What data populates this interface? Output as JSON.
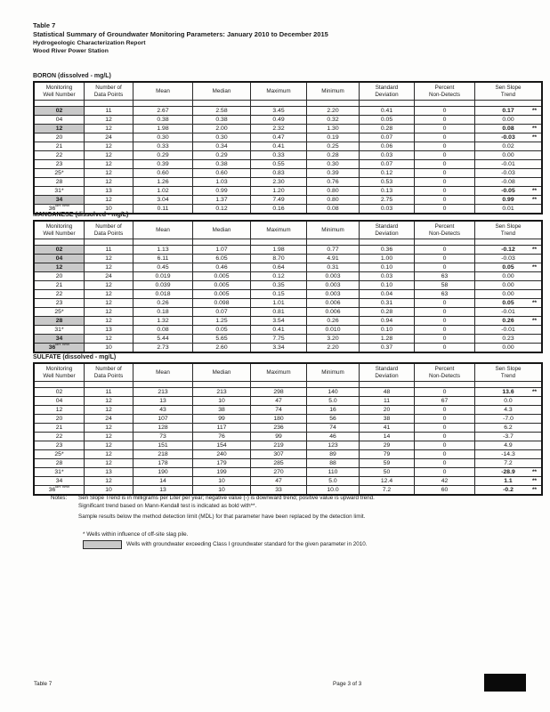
{
  "header": {
    "table_number": "Table 7",
    "title": "Statistical Summary of Groundwater Monitoring Parameters: January 2010 to December 2015",
    "subtitle1": "Hydrogeologic Characterization Report",
    "subtitle2": "Wood River Power Station"
  },
  "columns": [
    [
      "Monitoring",
      "Well Number"
    ],
    [
      "Number of",
      "Data Points"
    ],
    [
      "Mean"
    ],
    [
      "Median"
    ],
    [
      "Maximum"
    ],
    [
      "Minimum"
    ],
    [
      "Standard",
      "Deviation"
    ],
    [
      "Percent",
      "Non-Detects"
    ],
    [
      "Sen Slope",
      "Trend"
    ]
  ],
  "highlight_color": "#c9c9c9",
  "tables": [
    {
      "label": "BORON (dissolved - mg/L)",
      "rows": [
        {
          "well": "02",
          "sup": "",
          "hl": true,
          "vals": [
            "11",
            "2.67",
            "2.58",
            "3.45",
            "2.20",
            "0.41",
            "0"
          ],
          "sen": "0.17",
          "stars": "**",
          "bold": true
        },
        {
          "well": "04",
          "sup": "",
          "hl": false,
          "vals": [
            "12",
            "0.38",
            "0.38",
            "0.49",
            "0.32",
            "0.05",
            "0"
          ],
          "sen": "0.00",
          "stars": "",
          "bold": false
        },
        {
          "well": "12",
          "sup": "",
          "hl": true,
          "vals": [
            "12",
            "1.98",
            "2.00",
            "2.32",
            "1.30",
            "0.28",
            "0"
          ],
          "sen": "0.08",
          "stars": "**",
          "bold": true
        },
        {
          "well": "20",
          "sup": "",
          "hl": false,
          "vals": [
            "24",
            "0.30",
            "0.30",
            "0.47",
            "0.19",
            "0.07",
            "0"
          ],
          "sen": "-0.03",
          "stars": "**",
          "bold": true
        },
        {
          "well": "21",
          "sup": "",
          "hl": false,
          "vals": [
            "12",
            "0.33",
            "0.34",
            "0.41",
            "0.25",
            "0.06",
            "0"
          ],
          "sen": "0.02",
          "stars": "",
          "bold": false
        },
        {
          "well": "22",
          "sup": "",
          "hl": false,
          "vals": [
            "12",
            "0.29",
            "0.29",
            "0.33",
            "0.28",
            "0.03",
            "0"
          ],
          "sen": "0.00",
          "stars": "",
          "bold": false
        },
        {
          "well": "23",
          "sup": "",
          "hl": false,
          "vals": [
            "12",
            "0.39",
            "0.38",
            "0.55",
            "0.30",
            "0.07",
            "0"
          ],
          "sen": "-0.01",
          "stars": "",
          "bold": false
        },
        {
          "well": "25*",
          "sup": "",
          "hl": false,
          "vals": [
            "12",
            "0.60",
            "0.60",
            "0.83",
            "0.39",
            "0.12",
            "0"
          ],
          "sen": "-0.03",
          "stars": "",
          "bold": false
        },
        {
          "well": "28",
          "sup": "",
          "hl": false,
          "vals": [
            "12",
            "1.26",
            "1.03",
            "2.30",
            "0.76",
            "0.53",
            "0"
          ],
          "sen": "-0.08",
          "stars": "",
          "bold": false
        },
        {
          "well": "31*",
          "sup": "",
          "hl": false,
          "vals": [
            "13",
            "1.02",
            "0.99",
            "1.20",
            "0.80",
            "0.13",
            "0"
          ],
          "sen": "-0.05",
          "stars": "**",
          "bold": true
        },
        {
          "well": "34",
          "sup": "",
          "hl": true,
          "vals": [
            "12",
            "3.04",
            "1.37",
            "7.49",
            "0.80",
            "2.75",
            "0"
          ],
          "sen": "0.99",
          "stars": "**",
          "bold": true
        },
        {
          "well": "36",
          "sup": "BR WW",
          "hl": false,
          "vals": [
            "10",
            "0.11",
            "0.12",
            "0.16",
            "0.08",
            "0.03",
            "0"
          ],
          "sen": "0.01",
          "stars": "",
          "bold": false
        }
      ]
    },
    {
      "label": "MANGANESE (dissolved - mg/L)",
      "rows": [
        {
          "well": "02",
          "sup": "",
          "hl": true,
          "vals": [
            "11",
            "1.13",
            "1.07",
            "1.98",
            "0.77",
            "0.36",
            "0"
          ],
          "sen": "-0.12",
          "stars": "**",
          "bold": true
        },
        {
          "well": "04",
          "sup": "",
          "hl": true,
          "vals": [
            "12",
            "6.11",
            "6.05",
            "8.70",
            "4.91",
            "1.00",
            "0"
          ],
          "sen": "-0.03",
          "stars": "",
          "bold": false
        },
        {
          "well": "12",
          "sup": "",
          "hl": true,
          "vals": [
            "12",
            "0.45",
            "0.46",
            "0.64",
            "0.31",
            "0.10",
            "0"
          ],
          "sen": "0.05",
          "stars": "**",
          "bold": true
        },
        {
          "well": "20",
          "sup": "",
          "hl": false,
          "vals": [
            "24",
            "0.019",
            "0.005",
            "0.12",
            "0.003",
            "0.03",
            "63"
          ],
          "sen": "0.00",
          "stars": "",
          "bold": false
        },
        {
          "well": "21",
          "sup": "",
          "hl": false,
          "vals": [
            "12",
            "0.039",
            "0.005",
            "0.35",
            "0.003",
            "0.10",
            "58"
          ],
          "sen": "0.00",
          "stars": "",
          "bold": false
        },
        {
          "well": "22",
          "sup": "",
          "hl": false,
          "vals": [
            "12",
            "0.018",
            "0.005",
            "0.15",
            "0.003",
            "0.04",
            "63"
          ],
          "sen": "0.00",
          "stars": "",
          "bold": false
        },
        {
          "well": "23",
          "sup": "",
          "hl": false,
          "vals": [
            "12",
            "0.26",
            "0.098",
            "1.01",
            "0.006",
            "0.31",
            "0"
          ],
          "sen": "0.05",
          "stars": "**",
          "bold": true
        },
        {
          "well": "25*",
          "sup": "",
          "hl": false,
          "vals": [
            "12",
            "0.18",
            "0.07",
            "0.81",
            "0.006",
            "0.28",
            "0"
          ],
          "sen": "-0.01",
          "stars": "",
          "bold": false
        },
        {
          "well": "28",
          "sup": "",
          "hl": true,
          "vals": [
            "12",
            "1.32",
            "1.25",
            "3.54",
            "0.26",
            "0.94",
            "0"
          ],
          "sen": "0.26",
          "stars": "**",
          "bold": true
        },
        {
          "well": "31*",
          "sup": "",
          "hl": false,
          "vals": [
            "13",
            "0.08",
            "0.05",
            "0.41",
            "0.010",
            "0.10",
            "0"
          ],
          "sen": "-0.01",
          "stars": "",
          "bold": false
        },
        {
          "well": "34",
          "sup": "",
          "hl": true,
          "vals": [
            "12",
            "5.44",
            "5.65",
            "7.75",
            "3.20",
            "1.28",
            "0"
          ],
          "sen": "0.23",
          "stars": "",
          "bold": false
        },
        {
          "well": "36",
          "sup": "BR WW",
          "hl": true,
          "vals": [
            "10",
            "2.73",
            "2.60",
            "3.34",
            "2.20",
            "0.37",
            "0"
          ],
          "sen": "0.00",
          "stars": "",
          "bold": false
        }
      ]
    },
    {
      "label": "SULFATE (dissolved - mg/L)",
      "rows": [
        {
          "well": "02",
          "sup": "",
          "hl": false,
          "vals": [
            "11",
            "213",
            "213",
            "298",
            "140",
            "48",
            "0"
          ],
          "sen": "13.6",
          "stars": "**",
          "bold": true
        },
        {
          "well": "04",
          "sup": "",
          "hl": false,
          "vals": [
            "12",
            "13",
            "10",
            "47",
            "5.0",
            "11",
            "67"
          ],
          "sen": "0.0",
          "stars": "",
          "bold": false
        },
        {
          "well": "12",
          "sup": "",
          "hl": false,
          "vals": [
            "12",
            "43",
            "38",
            "74",
            "16",
            "20",
            "0"
          ],
          "sen": "4.3",
          "stars": "",
          "bold": false
        },
        {
          "well": "20",
          "sup": "",
          "hl": false,
          "vals": [
            "24",
            "107",
            "99",
            "180",
            "56",
            "38",
            "0"
          ],
          "sen": "-7.0",
          "stars": "",
          "bold": false
        },
        {
          "well": "21",
          "sup": "",
          "hl": false,
          "vals": [
            "12",
            "128",
            "117",
            "236",
            "74",
            "41",
            "0"
          ],
          "sen": "6.2",
          "stars": "",
          "bold": false
        },
        {
          "well": "22",
          "sup": "",
          "hl": false,
          "vals": [
            "12",
            "73",
            "76",
            "99",
            "46",
            "14",
            "0"
          ],
          "sen": "-3.7",
          "stars": "",
          "bold": false
        },
        {
          "well": "23",
          "sup": "",
          "hl": false,
          "vals": [
            "12",
            "151",
            "154",
            "219",
            "123",
            "29",
            "0"
          ],
          "sen": "4.9",
          "stars": "",
          "bold": false
        },
        {
          "well": "25*",
          "sup": "",
          "hl": false,
          "vals": [
            "12",
            "218",
            "240",
            "307",
            "89",
            "79",
            "0"
          ],
          "sen": "-14.3",
          "stars": "",
          "bold": false
        },
        {
          "well": "28",
          "sup": "",
          "hl": false,
          "vals": [
            "12",
            "178",
            "179",
            "285",
            "88",
            "59",
            "0"
          ],
          "sen": "7.2",
          "stars": "",
          "bold": false
        },
        {
          "well": "31*",
          "sup": "",
          "hl": false,
          "vals": [
            "13",
            "190",
            "199",
            "270",
            "110",
            "50",
            "0"
          ],
          "sen": "-28.9",
          "stars": "**",
          "bold": true
        },
        {
          "well": "34",
          "sup": "",
          "hl": false,
          "vals": [
            "12",
            "14",
            "10",
            "47",
            "5.0",
            "12.4",
            "42"
          ],
          "sen": "1.1",
          "stars": "**",
          "bold": true
        },
        {
          "well": "36",
          "sup": "BR WW",
          "hl": false,
          "vals": [
            "10",
            "13",
            "10",
            "33",
            "10.0",
            "7.2",
            "60"
          ],
          "sen": "-0.2",
          "stars": "**",
          "bold": true
        }
      ]
    }
  ],
  "notes": {
    "label": "Notes:",
    "lines": [
      "Sen Slope Trend is in milligrams per Liter per year; negative value (-) is downward trend; positive value is upward trend.",
      "Significant trend based on Mann-Kendall test is indicated as bold with**.",
      "Sample results below the method detection limit (MDL) for that parameter have been replaced by the detection limit."
    ],
    "asterisk_note": "* Wells within influence of off-site slag pile.",
    "legend_note": "Wells with groundwater exceeding Class I groundwater standard for the given parameter in 2010."
  },
  "footer": {
    "left": "Table 7",
    "center": "Page 3 of 3"
  }
}
